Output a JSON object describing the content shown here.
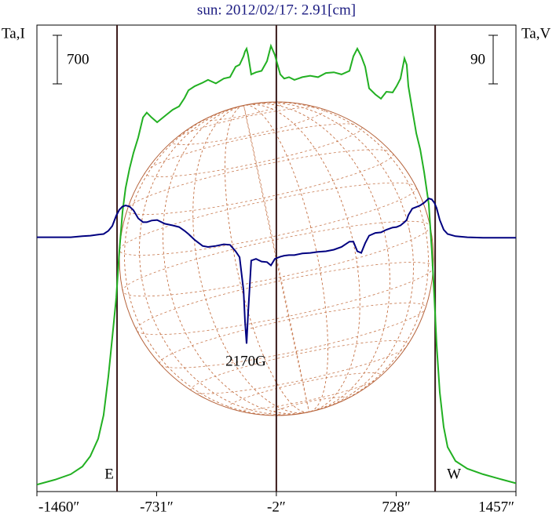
{
  "chart_data": {
    "type": "line",
    "title": "sun: 2012/02/17: 2.91[cm]",
    "y_label": "Ta,I",
    "y2_label": "Ta,V",
    "annotation": "2170G",
    "x": [
      -1460,
      -1350,
      -1254,
      -1183,
      -1135,
      -1087,
      -1054,
      -1025,
      -1001,
      -977,
      -958,
      -939,
      -920,
      -896,
      -872,
      -843,
      -814,
      -791,
      -762,
      -728,
      -681,
      -633,
      -594,
      -561,
      -537,
      -499,
      -451,
      -418,
      -370,
      -322,
      -284,
      -250,
      -226,
      -202,
      -193,
      -183,
      -174,
      -155,
      -126,
      -92,
      -59,
      -35,
      -11,
      22,
      46,
      75,
      108,
      156,
      204,
      252,
      300,
      348,
      395,
      443,
      467,
      491,
      515,
      539,
      563,
      601,
      635,
      668,
      706,
      730,
      754,
      778,
      792,
      802,
      826,
      850,
      874,
      898,
      926,
      945,
      960,
      974,
      993,
      1017,
      1041,
      1089,
      1161,
      1256,
      1376,
      1457
    ],
    "series": [
      {
        "name": "I",
        "color": "#22b022",
        "axis": "y",
        "values": [
          100,
          170,
          250,
          360,
          510,
          760,
          1100,
          1660,
          2220,
          2790,
          3470,
          4030,
          4370,
          4650,
          4880,
          5100,
          5390,
          5460,
          5390,
          5320,
          5410,
          5500,
          5550,
          5670,
          5780,
          5840,
          5890,
          5930,
          5880,
          5950,
          5970,
          6120,
          6150,
          6270,
          6340,
          6380,
          6290,
          6010,
          6040,
          6060,
          6200,
          6420,
          6290,
          6010,
          5950,
          5970,
          5930,
          5970,
          5990,
          5970,
          6030,
          6040,
          6010,
          6060,
          6270,
          6380,
          6270,
          6120,
          5810,
          5720,
          5660,
          5760,
          5750,
          5840,
          5950,
          6240,
          6150,
          5840,
          5500,
          5160,
          4930,
          4600,
          4140,
          3470,
          2790,
          2110,
          1430,
          930,
          640,
          440,
          330,
          250,
          170,
          120
        ]
      },
      {
        "name": "V",
        "color": "#000080",
        "axis": "y2",
        "values": [
          1,
          1,
          1,
          3,
          4,
          6,
          7,
          13,
          22,
          41,
          52,
          58,
          60,
          58,
          51,
          36,
          29,
          29,
          32,
          33,
          26,
          23,
          20,
          13,
          7,
          -4,
          -15,
          -17,
          -15,
          -12,
          -13,
          -25,
          -36,
          -97,
          -155,
          -196,
          -141,
          -42,
          -39,
          -44,
          -45,
          -51,
          -39,
          -35,
          -33,
          -32,
          -32,
          -29,
          -28,
          -26,
          -25,
          -22,
          -17,
          -7,
          -7,
          -25,
          -28,
          -10,
          4,
          9,
          10,
          15,
          19,
          20,
          23,
          29,
          33,
          42,
          54,
          57,
          60,
          65,
          73,
          71,
          65,
          55,
          33,
          15,
          7,
          3,
          1,
          0,
          0,
          0
        ]
      }
    ],
    "xlim": [
      -1460,
      1457
    ],
    "xticks": [
      {
        "value": -1460,
        "label": "-1460″"
      },
      {
        "value": -731,
        "label": "-731″"
      },
      {
        "value": -2,
        "label": "-2″"
      },
      {
        "value": 728,
        "label": "728″"
      },
      {
        "value": 1457,
        "label": "1457″"
      }
    ],
    "ylim": [
      0,
      6720
    ],
    "y2lim": [
      -470,
      394
    ],
    "center_x": -2,
    "markers": [
      {
        "x": -972,
        "label": "E"
      },
      {
        "x": 965,
        "label": "W"
      }
    ],
    "scale_bars": [
      {
        "value": 700,
        "axis": "y"
      },
      {
        "value": 90,
        "axis": "y2"
      }
    ]
  }
}
